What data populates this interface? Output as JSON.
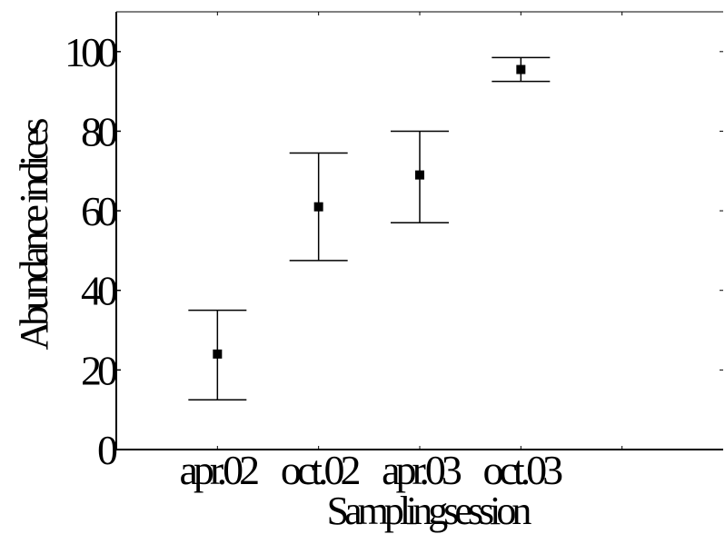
{
  "chart_data": {
    "type": "scatter",
    "title": "",
    "xlabel": "Samplingsession",
    "ylabel": "Abundance indices",
    "categories": [
      "apr.02",
      "oct.02",
      "apr.03",
      "oct.03"
    ],
    "series": [
      {
        "points": [
          {
            "category": "apr.02",
            "mean": 24,
            "lower": 12.5,
            "upper": 35
          },
          {
            "category": "oct.02",
            "mean": 61,
            "lower": 47.5,
            "upper": 74.5
          },
          {
            "category": "apr.03",
            "mean": 69,
            "lower": 57,
            "upper": 80
          },
          {
            "category": "oct.03",
            "mean": 95.5,
            "lower": 92.5,
            "upper": 98.5
          }
        ]
      }
    ],
    "yticks": [
      0,
      20,
      40,
      60,
      80,
      100
    ],
    "ylim": [
      0,
      110
    ],
    "grid": false,
    "colors": {
      "marker": "#000000",
      "axis": "#000000",
      "background": "#ffffff"
    }
  }
}
